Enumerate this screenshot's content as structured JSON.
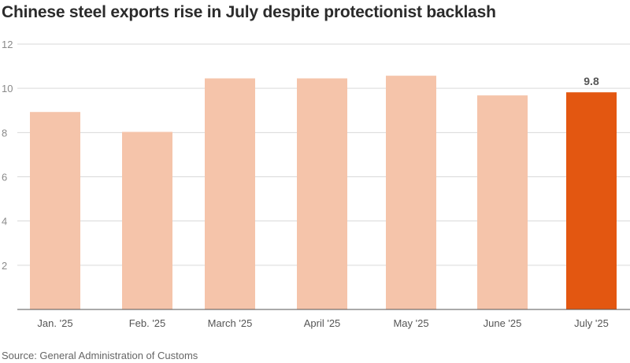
{
  "chart_data": {
    "type": "bar",
    "title": "Chinese steel exports rise in July despite protectionist backlash",
    "source": "Source: General Administration of Customs",
    "categories": [
      "Jan. '25",
      "Feb. '25",
      "March '25",
      "April '25",
      "May '25",
      "June '25",
      "July '25"
    ],
    "values": [
      8.93,
      8.03,
      10.45,
      10.45,
      10.57,
      9.68,
      9.82
    ],
    "highlight_index": 6,
    "data_labels": [
      {
        "index": 6,
        "text": "9.8"
      }
    ],
    "yticks": [
      2,
      4,
      6,
      8,
      10,
      12
    ],
    "ylim": [
      0,
      12
    ],
    "grid": true,
    "xlabel": "",
    "ylabel": "",
    "colors": {
      "bar": "#f5c4aa",
      "highlight": "#e35711",
      "grid": "#d9d9d9",
      "axis": "#555555"
    }
  }
}
